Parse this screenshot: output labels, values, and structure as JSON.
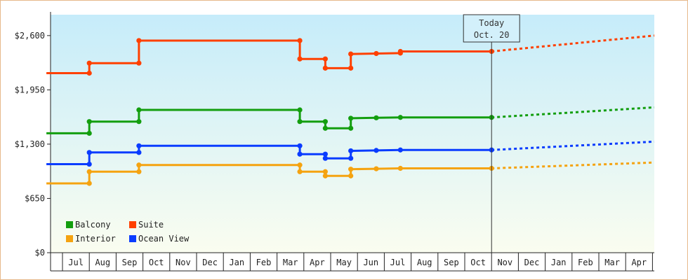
{
  "chart_data": {
    "type": "line",
    "step": true,
    "y_ticks": [
      "$0",
      "$650",
      "$1,300",
      "$1,950",
      "$2,600"
    ],
    "ylim": [
      0,
      2850
    ],
    "months": [
      "Jul",
      "Aug",
      "Sep",
      "Oct",
      "Nov",
      "Dec",
      "Jan",
      "Feb",
      "Mar",
      "Apr",
      "May",
      "Jun",
      "Jul",
      "Aug",
      "Sep",
      "Oct",
      "Nov",
      "Dec",
      "Jan",
      "Feb",
      "Mar",
      "Apr"
    ],
    "today": {
      "line1": "Today",
      "line2": "Oct. 20",
      "x": 16.0
    },
    "grid": false,
    "legend": {
      "placement": "bottom-left",
      "entries": [
        {
          "label": "Balcony",
          "color": "#139e0f"
        },
        {
          "label": "Suite",
          "color": "#ff4000"
        },
        {
          "label": "Interior",
          "color": "#f5a310"
        },
        {
          "label": "Ocean View",
          "color": "#0a3cff"
        }
      ]
    },
    "series": [
      {
        "name": "Suite",
        "color": "#ff4000",
        "points": [
          [
            -0.6,
            2150
          ],
          [
            1.0,
            2150
          ],
          [
            1.0,
            2270
          ],
          [
            2.85,
            2270
          ],
          [
            2.85,
            2540
          ],
          [
            8.85,
            2540
          ],
          [
            8.85,
            2320
          ],
          [
            9.8,
            2320
          ],
          [
            9.8,
            2210
          ],
          [
            10.75,
            2210
          ],
          [
            10.75,
            2380
          ],
          [
            11.7,
            2385
          ],
          [
            12.6,
            2390
          ],
          [
            12.6,
            2410
          ],
          [
            16.0,
            2410
          ]
        ],
        "forecast": [
          [
            16.0,
            2410
          ],
          [
            22.5,
            2600
          ]
        ]
      },
      {
        "name": "Balcony",
        "color": "#139e0f",
        "points": [
          [
            -0.6,
            1430
          ],
          [
            1.0,
            1430
          ],
          [
            1.0,
            1570
          ],
          [
            2.85,
            1570
          ],
          [
            2.85,
            1710
          ],
          [
            8.85,
            1710
          ],
          [
            8.85,
            1570
          ],
          [
            9.8,
            1570
          ],
          [
            9.8,
            1490
          ],
          [
            10.75,
            1490
          ],
          [
            10.75,
            1610
          ],
          [
            11.7,
            1615
          ],
          [
            12.6,
            1620
          ],
          [
            16.0,
            1620
          ]
        ],
        "forecast": [
          [
            16.0,
            1620
          ],
          [
            22.5,
            1740
          ]
        ]
      },
      {
        "name": "Ocean View",
        "color": "#0a3cff",
        "points": [
          [
            -0.6,
            1060
          ],
          [
            1.0,
            1060
          ],
          [
            1.0,
            1200
          ],
          [
            2.85,
            1200
          ],
          [
            2.85,
            1280
          ],
          [
            8.85,
            1280
          ],
          [
            8.85,
            1180
          ],
          [
            9.8,
            1180
          ],
          [
            9.8,
            1130
          ],
          [
            10.75,
            1130
          ],
          [
            10.75,
            1220
          ],
          [
            11.7,
            1225
          ],
          [
            12.6,
            1230
          ],
          [
            16.0,
            1230
          ]
        ],
        "forecast": [
          [
            16.0,
            1230
          ],
          [
            22.5,
            1330
          ]
        ]
      },
      {
        "name": "Interior",
        "color": "#f5a310",
        "points": [
          [
            -0.6,
            830
          ],
          [
            1.0,
            830
          ],
          [
            1.0,
            970
          ],
          [
            2.85,
            970
          ],
          [
            2.85,
            1050
          ],
          [
            8.85,
            1050
          ],
          [
            8.85,
            970
          ],
          [
            9.8,
            970
          ],
          [
            9.8,
            920
          ],
          [
            10.75,
            920
          ],
          [
            10.75,
            1000
          ],
          [
            11.7,
            1005
          ],
          [
            12.6,
            1010
          ],
          [
            16.0,
            1010
          ]
        ],
        "forecast": [
          [
            16.0,
            1010
          ],
          [
            22.5,
            1080
          ]
        ]
      }
    ]
  }
}
